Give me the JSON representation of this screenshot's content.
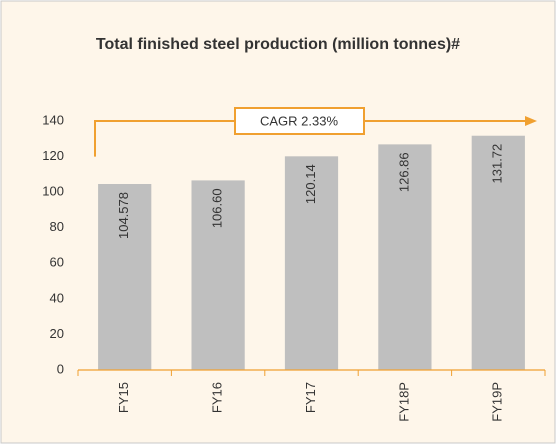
{
  "chart_data": {
    "type": "bar",
    "title": "Total finished steel production (million tonnes)#",
    "categories": [
      "FY15",
      "FY16",
      "FY17",
      "FY18P",
      "FY19P"
    ],
    "values": [
      104.578,
      106.6,
      120.14,
      126.86,
      131.72
    ],
    "value_labels": [
      "104.578",
      "106.60",
      "120.14",
      "126.86",
      "131.72"
    ],
    "color": "#bfbfbf",
    "ylim": [
      0,
      140
    ],
    "yticks": [
      0,
      20,
      40,
      60,
      80,
      100,
      120,
      140
    ],
    "grid": false,
    "annotation": "CAGR 2.33%"
  }
}
